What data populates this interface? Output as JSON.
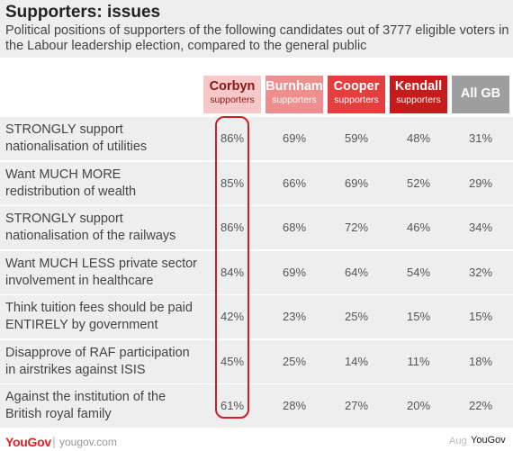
{
  "header": {
    "title": "Supporters: issues",
    "subtitle": "Political positions of supporters of the following candidates out of 3777 eligible voters in the Labour leadership election, compared to the general public"
  },
  "footer": {
    "logo": "YouGov",
    "separator": "|",
    "site": "yougov.com",
    "date": "Aug",
    "credit": "YouGov"
  },
  "chart_data": {
    "type": "table",
    "title": "Supporters: issues",
    "columns": [
      {
        "name": "Corbyn",
        "sub": "supporters",
        "color": "#f7c8c8"
      },
      {
        "name": "Burnham",
        "sub": "supporters",
        "color": "#ee8e8e"
      },
      {
        "name": "Cooper",
        "sub": "supporters",
        "color": "#e43f3f"
      },
      {
        "name": "Kendall",
        "sub": "supporters",
        "color": "#c71a1a"
      },
      {
        "name": "All GB",
        "sub": "",
        "color": "#9e9e9e"
      }
    ],
    "rows": [
      {
        "label": [
          "STRONGLY support",
          "nationalisation of utilities"
        ],
        "values": [
          "86%",
          "69%",
          "59%",
          "48%",
          "31%"
        ]
      },
      {
        "label": [
          "Want MUCH MORE",
          "redistribution of wealth"
        ],
        "values": [
          "85%",
          "66%",
          "69%",
          "52%",
          "29%"
        ]
      },
      {
        "label": [
          "STRONGLY support",
          "nationalisation of the railways"
        ],
        "values": [
          "86%",
          "68%",
          "72%",
          "46%",
          "34%"
        ]
      },
      {
        "label": [
          "Want MUCH LESS private sector",
          "involvement in healthcare"
        ],
        "values": [
          "84%",
          "69%",
          "64%",
          "54%",
          "32%"
        ]
      },
      {
        "label": [
          "Think tuition fees should be paid",
          "ENTIRELY by government"
        ],
        "values": [
          "42%",
          "23%",
          "25%",
          "15%",
          "15%"
        ]
      },
      {
        "label": [
          "Disapprove of RAF participation",
          "in airstrikes against ISIS"
        ],
        "values": [
          "45%",
          "25%",
          "14%",
          "11%",
          "18%"
        ]
      },
      {
        "label": [
          "Against the institution of the",
          "British royal family"
        ],
        "values": [
          "61%",
          "28%",
          "27%",
          "20%",
          "22%"
        ]
      }
    ],
    "highlight_column": "Corbyn",
    "highlight_color": "#d11f1f"
  }
}
